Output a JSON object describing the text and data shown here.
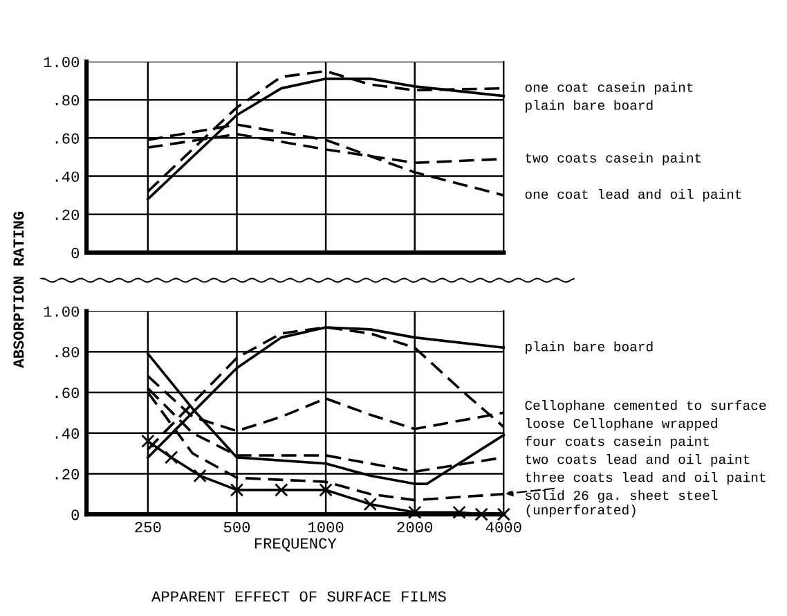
{
  "chart_data": [
    {
      "type": "line",
      "ylabel": "ABSORPTION RATING",
      "log": "x",
      "xlim": [
        155,
        4000
      ],
      "xticks": [
        250,
        500,
        1000,
        2000,
        4000
      ],
      "ylim": [
        0,
        1.0
      ],
      "yticks": [
        {
          "value": 0,
          "label": "0"
        },
        {
          "value": 0.2,
          "label": ".20"
        },
        {
          "value": 0.4,
          "label": ".40"
        },
        {
          "value": 0.6,
          "label": ".60"
        },
        {
          "value": 0.8,
          "label": ".80"
        },
        {
          "value": 1.0,
          "label": "1.00"
        }
      ],
      "grid": true,
      "tick_labels": "y",
      "legend": "right",
      "series": [
        {
          "name": "one coat casein paint",
          "color": "#000000",
          "line_style": "dashed",
          "x": [
            250,
            500,
            707,
            1000,
            1414,
            2000,
            4000
          ],
          "values": [
            0.32,
            0.76,
            0.92,
            0.95,
            0.88,
            0.85,
            0.86
          ]
        },
        {
          "name": "plain bare board",
          "color": "#000000",
          "line_style": "solid",
          "x": [
            250,
            500,
            707,
            1000,
            1414,
            2000,
            4000
          ],
          "values": [
            0.28,
            0.72,
            0.86,
            0.91,
            0.91,
            0.87,
            0.82
          ]
        },
        {
          "name": "two coats casein paint",
          "color": "#000000",
          "line_style": "dashed",
          "x": [
            250,
            500,
            1000,
            2000,
            4000
          ],
          "values": [
            0.55,
            0.62,
            0.54,
            0.47,
            0.49
          ]
        },
        {
          "name": "one coat lead and oil paint",
          "color": "#000000",
          "line_style": "dashed",
          "x": [
            250,
            500,
            1000,
            2000,
            4000
          ],
          "values": [
            0.59,
            0.67,
            0.59,
            0.42,
            0.3
          ]
        }
      ]
    },
    {
      "type": "line",
      "xlabel": "FREQUENCY",
      "log": "x",
      "xlim": [
        155,
        4000
      ],
      "xticks": [
        250,
        500,
        1000,
        2000,
        4000
      ],
      "ylim": [
        0,
        1.0
      ],
      "yticks": [
        {
          "value": 0,
          "label": "0"
        },
        {
          "value": 0.2,
          "label": ".20"
        },
        {
          "value": 0.4,
          "label": ".40"
        },
        {
          "value": 0.6,
          "label": ".60"
        },
        {
          "value": 0.8,
          "label": ".80"
        },
        {
          "value": 1.0,
          "label": "1.00"
        }
      ],
      "grid": true,
      "legend": "right",
      "annotations": [
        "APPARENT EFFECT OF SURFACE FILMS"
      ],
      "series": [
        {
          "name": "plain bare board",
          "color": "#000000",
          "line_style": "solid",
          "x": [
            250,
            500,
            707,
            1000,
            1414,
            2000,
            4000
          ],
          "values": [
            0.28,
            0.72,
            0.87,
            0.92,
            0.91,
            0.87,
            0.82
          ]
        },
        {
          "name": "loose Cellophane wrapped",
          "color": "#000000",
          "line_style": "dashed",
          "x": [
            250,
            500,
            707,
            1000,
            1414,
            2000,
            2828,
            4000
          ],
          "values": [
            0.32,
            0.77,
            0.89,
            0.92,
            0.89,
            0.82,
            0.62,
            0.43
          ]
        },
        {
          "name": "Cellophane cemented to surface",
          "color": "#000000",
          "line_style": "dashed",
          "x": [
            250,
            354,
            500,
            707,
            1000,
            1414,
            2000,
            4000
          ],
          "values": [
            0.68,
            0.48,
            0.41,
            0.48,
            0.57,
            0.49,
            0.42,
            0.5
          ]
        },
        {
          "name": "four coats casein paint",
          "color": "#000000",
          "line_style": "solid",
          "x": [
            250,
            354,
            500,
            1000,
            1414,
            2000,
            2200,
            4000
          ],
          "values": [
            0.79,
            0.52,
            0.28,
            0.25,
            0.19,
            0.15,
            0.15,
            0.39
          ]
        },
        {
          "name": "two coats lead and oil paint",
          "color": "#000000",
          "line_style": "dashed",
          "x": [
            250,
            354,
            500,
            1000,
            2000,
            4000
          ],
          "values": [
            0.62,
            0.4,
            0.29,
            0.29,
            0.21,
            0.28
          ]
        },
        {
          "name": "three coats lead and oil paint",
          "color": "#000000",
          "line_style": "dashed",
          "x": [
            250,
            354,
            500,
            1000,
            1414,
            2000,
            4000
          ],
          "values": [
            0.6,
            0.3,
            0.18,
            0.16,
            0.1,
            0.07,
            0.1
          ]
        },
        {
          "name": "solid 26 ga. sheet steel (unperforated)",
          "color": "#000000",
          "line_style": "solid",
          "marker": "cross",
          "x": [
            250,
            300,
            375,
            500,
            707,
            1000,
            1414,
            2000,
            2828,
            3364,
            4000
          ],
          "values": [
            0.36,
            0.28,
            0.19,
            0.12,
            0.12,
            0.12,
            0.05,
            0.01,
            0.01,
            0.0,
            0.0
          ]
        }
      ]
    }
  ]
}
